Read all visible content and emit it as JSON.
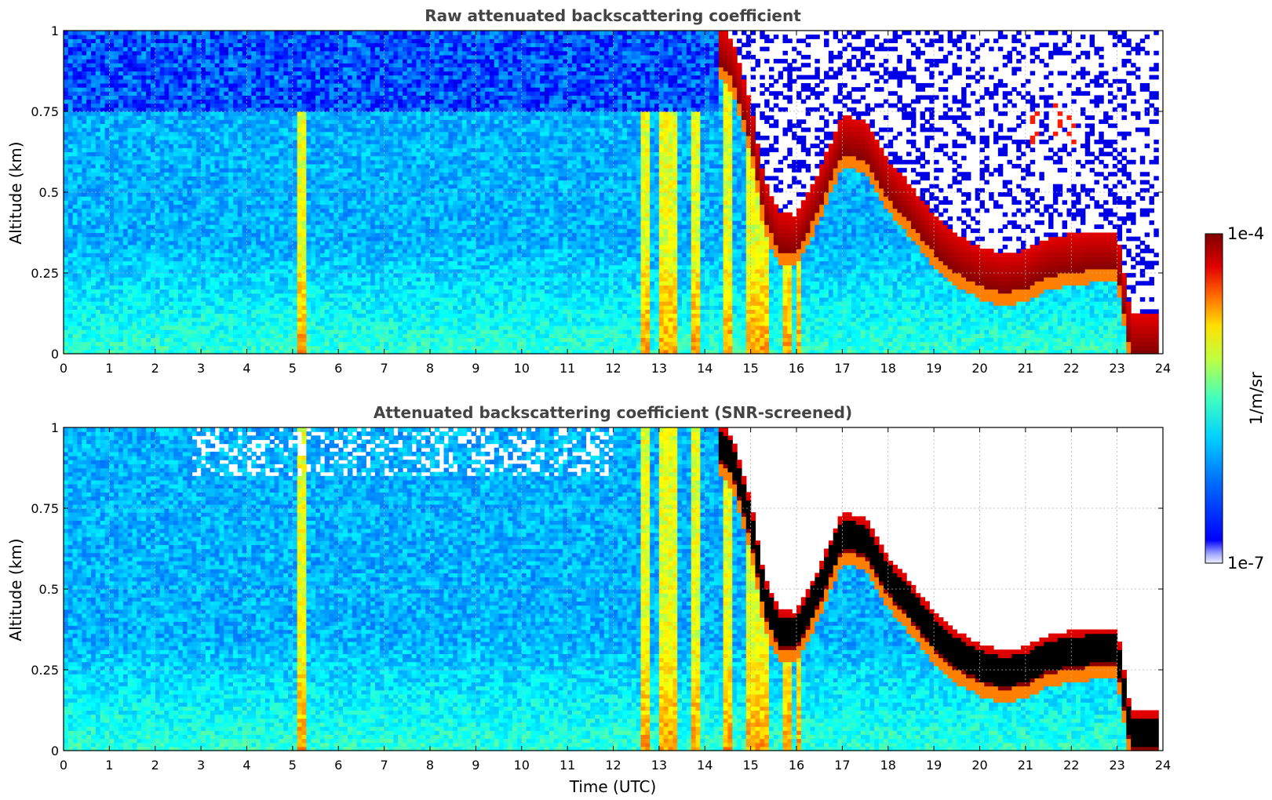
{
  "chart_data": [
    {
      "type": "heatmap",
      "title": "Raw attenuated backscattering coefficient",
      "xlabel": "",
      "ylabel": "Altitude (km)",
      "xlim": [
        0,
        24
      ],
      "ylim": [
        0,
        1
      ],
      "x_ticks": [
        "0",
        "1",
        "2",
        "3",
        "4",
        "5",
        "6",
        "7",
        "8",
        "9",
        "10",
        "11",
        "12",
        "13",
        "14",
        "15",
        "16",
        "17",
        "18",
        "19",
        "20",
        "21",
        "22",
        "23",
        "24"
      ],
      "y_ticks": [
        "0",
        "0.25",
        "0.5",
        "0.75",
        "1"
      ],
      "grid": true,
      "features": {
        "vertical_streaks_utc": [
          [
            5.1,
            5.25
          ],
          [
            12.6,
            12.8
          ],
          [
            13.0,
            13.4
          ],
          [
            13.7,
            13.9
          ],
          [
            14.4,
            14.55
          ],
          [
            14.9,
            15.0
          ],
          [
            15.0,
            15.35
          ],
          [
            15.7,
            15.85
          ],
          [
            16.0,
            16.1
          ]
        ],
        "cloud_base_km": [
          {
            "t": 14.3,
            "z": 0.9
          },
          {
            "t": 14.6,
            "z": 0.85
          },
          {
            "t": 15.0,
            "z": 0.65
          },
          {
            "t": 15.3,
            "z": 0.42
          },
          {
            "t": 15.6,
            "z": 0.32
          },
          {
            "t": 16.0,
            "z": 0.31
          },
          {
            "t": 16.5,
            "z": 0.45
          },
          {
            "t": 17.0,
            "z": 0.62
          },
          {
            "t": 17.5,
            "z": 0.6
          },
          {
            "t": 18.0,
            "z": 0.48
          },
          {
            "t": 18.5,
            "z": 0.4
          },
          {
            "t": 19.0,
            "z": 0.31
          },
          {
            "t": 19.5,
            "z": 0.25
          },
          {
            "t": 20.0,
            "z": 0.21
          },
          {
            "t": 20.5,
            "z": 0.19
          },
          {
            "t": 21.0,
            "z": 0.2
          },
          {
            "t": 21.5,
            "z": 0.24
          },
          {
            "t": 22.0,
            "z": 0.25
          },
          {
            "t": 22.5,
            "z": 0.26
          },
          {
            "t": 23.0,
            "z": 0.26
          },
          {
            "t": 23.3,
            "z": 0.0
          },
          {
            "t": 23.9,
            "z": 0.0
          }
        ],
        "small_clouds": [
          {
            "t": 21.2,
            "z": 0.7
          },
          {
            "t": 21.7,
            "z": 0.72
          },
          {
            "t": 22.0,
            "z": 0.7
          }
        ]
      },
      "screened": false
    },
    {
      "type": "heatmap",
      "title": "Attenuated backscattering coefficient (SNR-screened)",
      "xlabel": "Time (UTC)",
      "ylabel": "Altitude (km)",
      "xlim": [
        0,
        24
      ],
      "ylim": [
        0,
        1
      ],
      "x_ticks": [
        "0",
        "1",
        "2",
        "3",
        "4",
        "5",
        "6",
        "7",
        "8",
        "9",
        "10",
        "11",
        "12",
        "13",
        "14",
        "15",
        "16",
        "17",
        "18",
        "19",
        "20",
        "21",
        "22",
        "23",
        "24"
      ],
      "y_ticks": [
        "0",
        "0.25",
        "0.5",
        "0.75",
        "1"
      ],
      "grid": true,
      "screened": true
    }
  ],
  "colorbar": {
    "max_label": "1e-4",
    "min_label": "1e-7",
    "unit_label": "1/m/sr",
    "scale": "log",
    "range": [
      1e-07,
      0.0001
    ],
    "colormap": "jet",
    "saturated_color": "#000000"
  }
}
